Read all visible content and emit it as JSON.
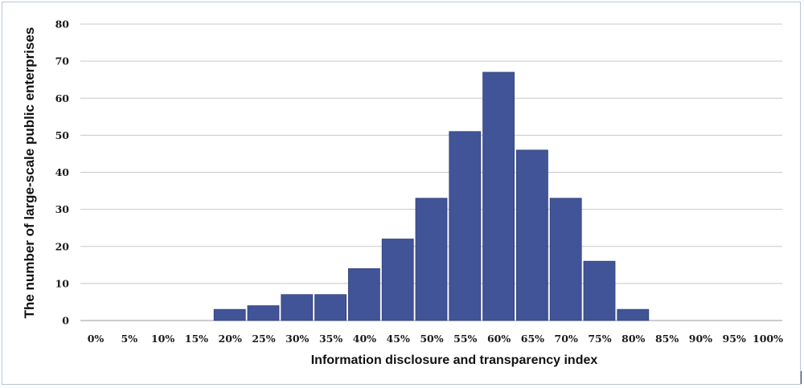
{
  "chart_data": {
    "type": "bar",
    "categories": [
      "0%",
      "5%",
      "10%",
      "15%",
      "20%",
      "25%",
      "30%",
      "35%",
      "40%",
      "45%",
      "50%",
      "55%",
      "60%",
      "65%",
      "70%",
      "75%",
      "80%",
      "85%",
      "90%",
      "95%",
      "100%"
    ],
    "values": [
      0,
      0,
      0,
      0,
      3,
      4,
      7,
      7,
      14,
      22,
      33,
      51,
      67,
      46,
      33,
      16,
      3,
      0,
      0,
      0,
      0
    ],
    "xlabel": "Information disclosure and transparency index",
    "ylabel": "The number of large-scale public enterprises",
    "ylim": [
      0,
      80
    ],
    "yticks": [
      0,
      10,
      20,
      30,
      40,
      50,
      60,
      70,
      80
    ],
    "grid": true,
    "bar_color": "#415497",
    "grid_color": "#c8c8c8"
  }
}
